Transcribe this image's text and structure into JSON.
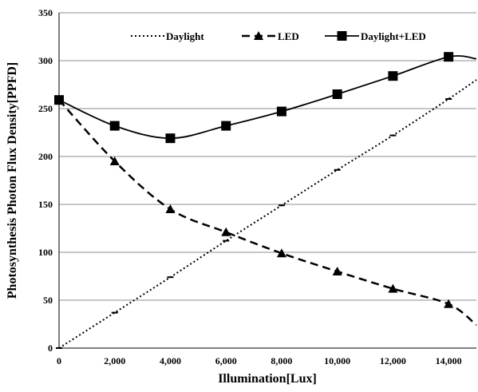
{
  "chart_data": {
    "type": "line",
    "xlabel": "Illumination[Lux]",
    "ylabel": "Photosynthesis Photon Flux Density[PPFD]",
    "xlim": [
      0,
      15000
    ],
    "ylim": [
      0,
      350
    ],
    "x_ticks": [
      "0",
      "2,000",
      "4,000",
      "6,000",
      "8,000",
      "10,000",
      "12,000",
      "14,000"
    ],
    "x_tick_values": [
      0,
      2000,
      4000,
      6000,
      8000,
      10000,
      12000,
      14000
    ],
    "y_ticks": [
      "0",
      "50",
      "100",
      "150",
      "200",
      "250",
      "300",
      "350"
    ],
    "y_tick_values": [
      0,
      50,
      100,
      150,
      200,
      250,
      300,
      350
    ],
    "grid": "horizontal",
    "legend_position": "top",
    "series": [
      {
        "name": "Daylight",
        "style": "dotted",
        "marker": "dash",
        "color": "#000000",
        "x": [
          0,
          2000,
          4000,
          6000,
          8000,
          10000,
          12000,
          14000,
          15000
        ],
        "values": [
          0,
          37,
          74,
          112,
          149,
          186,
          222,
          260,
          280
        ],
        "marker_count": 8
      },
      {
        "name": "LED",
        "style": "dashed",
        "marker": "triangle",
        "color": "#000000",
        "x": [
          0,
          2000,
          4000,
          6000,
          8000,
          10000,
          12000,
          14000,
          15000
        ],
        "values": [
          259,
          195,
          145,
          121,
          99,
          80,
          62,
          46,
          24
        ],
        "marker_count": 8
      },
      {
        "name": "Daylight+LED",
        "style": "solid",
        "marker": "square",
        "color": "#000000",
        "x": [
          0,
          2000,
          4000,
          6000,
          8000,
          10000,
          12000,
          14000,
          15000
        ],
        "values": [
          259,
          232,
          219,
          232,
          247,
          265,
          284,
          304,
          302
        ],
        "marker_count": 8
      }
    ]
  }
}
